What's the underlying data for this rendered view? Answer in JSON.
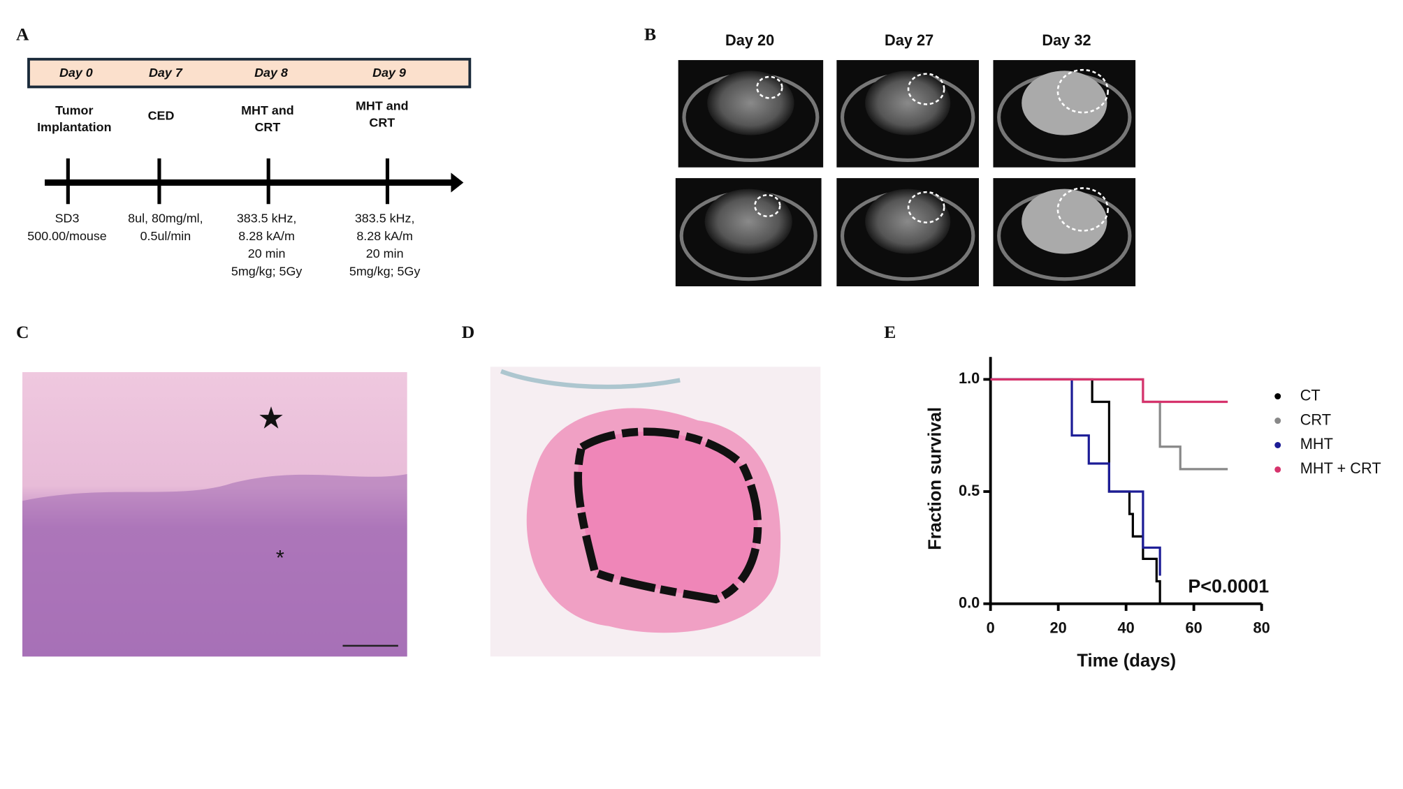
{
  "panels": {
    "A": {
      "letter": "A",
      "days": [
        "Day 0",
        "Day 7",
        "Day 8",
        "Day 9"
      ],
      "events": [
        [
          "Tumor",
          "Implantation"
        ],
        [
          "CED"
        ],
        [
          "MHT and",
          "CRT"
        ],
        [
          "MHT and",
          "CRT"
        ]
      ],
      "details": [
        [
          "SD3",
          "500.00/mouse"
        ],
        [
          "8ul, 80mg/ml,",
          "0.5ul/min"
        ],
        [
          "383.5 kHz,",
          "8.28 kA/m",
          "20 min",
          "5mg/kg; 5Gy"
        ],
        [
          "383.5 kHz,",
          "8.28 kA/m",
          "20 min",
          "5mg/kg; 5Gy"
        ]
      ]
    },
    "B": {
      "letter": "B",
      "columns": [
        "Day 20",
        "Day 27",
        "Day 32"
      ]
    },
    "C": {
      "letter": "C",
      "markers": [
        "★",
        "*"
      ]
    },
    "D": {
      "letter": "D"
    },
    "E": {
      "letter": "E"
    }
  },
  "chart_data": {
    "type": "step",
    "xlabel": "Time (days)",
    "ylabel": "Fraction survival",
    "annotation": "P<0.0001",
    "xlim": [
      0,
      80
    ],
    "xticks": [
      0,
      20,
      40,
      60,
      80
    ],
    "ylim": [
      0,
      1.1
    ],
    "yticks": [
      {
        "value": 0,
        "label": "0.0"
      },
      {
        "value": 0.5,
        "label": "0.5"
      },
      {
        "value": 1,
        "label": "1.0"
      }
    ],
    "series": [
      {
        "name": "CT",
        "color": "#000000",
        "x": [
          0,
          30,
          35,
          41,
          42,
          45,
          49,
          50
        ],
        "values": [
          1,
          0.9,
          0.5,
          0.4,
          0.3,
          0.2,
          0.1,
          0
        ]
      },
      {
        "name": "CRT",
        "color": "#888888",
        "x": [
          0,
          45,
          50,
          56,
          70
        ],
        "values": [
          1,
          0.9,
          0.7,
          0.6,
          0.6
        ]
      },
      {
        "name": "MHT",
        "color": "#1c1c96",
        "x": [
          0,
          24,
          29,
          35,
          45,
          50
        ],
        "values": [
          1,
          0.75,
          0.625,
          0.5,
          0.25,
          0.125
        ]
      },
      {
        "name": "MHT + CRT",
        "color": "#d6336c",
        "x": [
          0,
          45,
          70
        ],
        "values": [
          1,
          0.9,
          0.9
        ]
      }
    ]
  }
}
